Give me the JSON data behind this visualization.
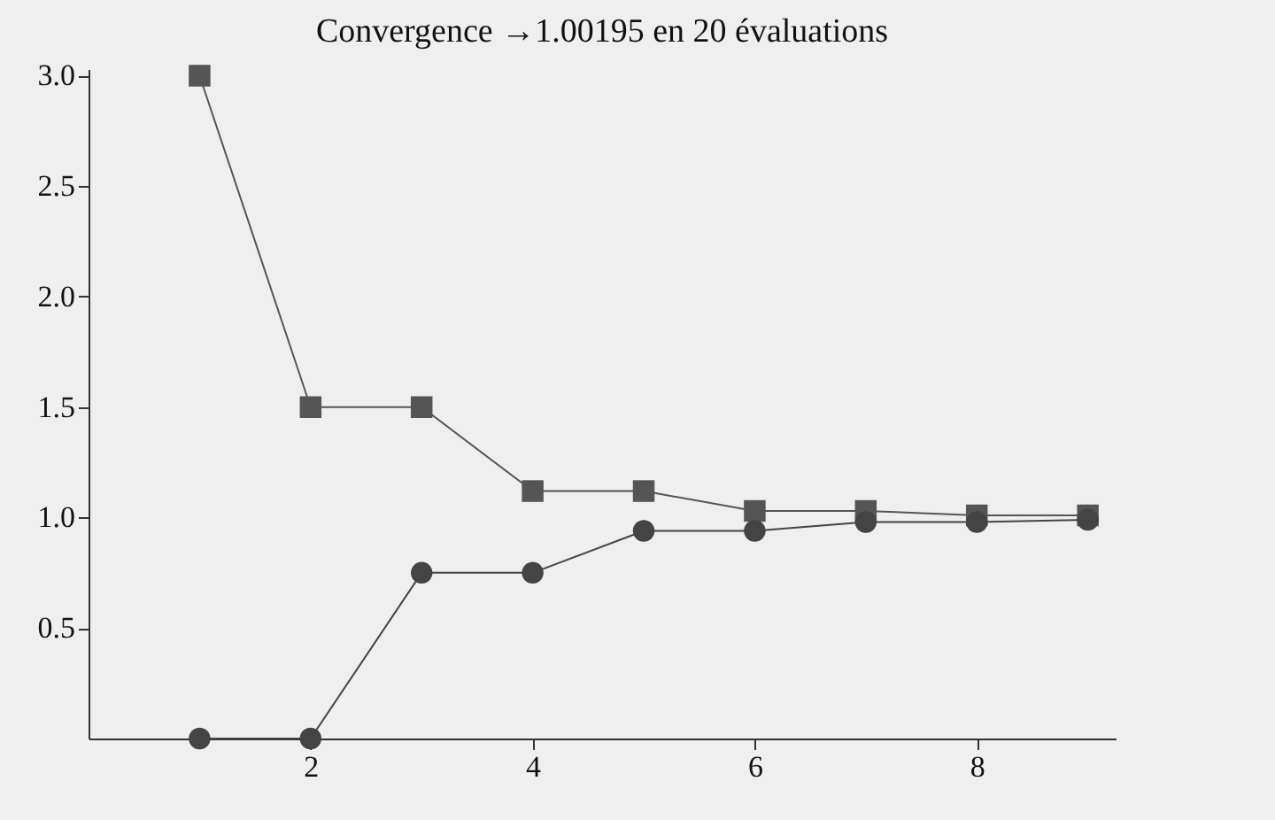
{
  "chart_data": {
    "type": "line",
    "title": "Convergence →1.00195 en 20 évaluations",
    "x": [
      1,
      2,
      3,
      4,
      5,
      6,
      7,
      8,
      9
    ],
    "series": [
      {
        "color": "#555555",
        "marker": "square",
        "values": [
          3.0,
          1.5,
          1.5,
          1.12,
          1.12,
          1.03,
          1.03,
          1.01,
          1.01
        ]
      },
      {
        "color": "#444444",
        "marker": "circle",
        "values": [
          0,
          0,
          0.75,
          0.75,
          0.94,
          0.94,
          0.98,
          0.98,
          0.99
        ]
      }
    ],
    "xlim": [
      0,
      9.25
    ],
    "ylim": [
      0,
      3.03
    ],
    "xticks": [
      2,
      4,
      6,
      8
    ],
    "yticks": [
      0.5,
      {
        "value": 1,
        "label": "1.0"
      },
      1.5,
      {
        "value": 2,
        "label": "2.0"
      },
      2.5,
      {
        "value": 3,
        "label": "3.0"
      }
    ],
    "grid": false
  }
}
